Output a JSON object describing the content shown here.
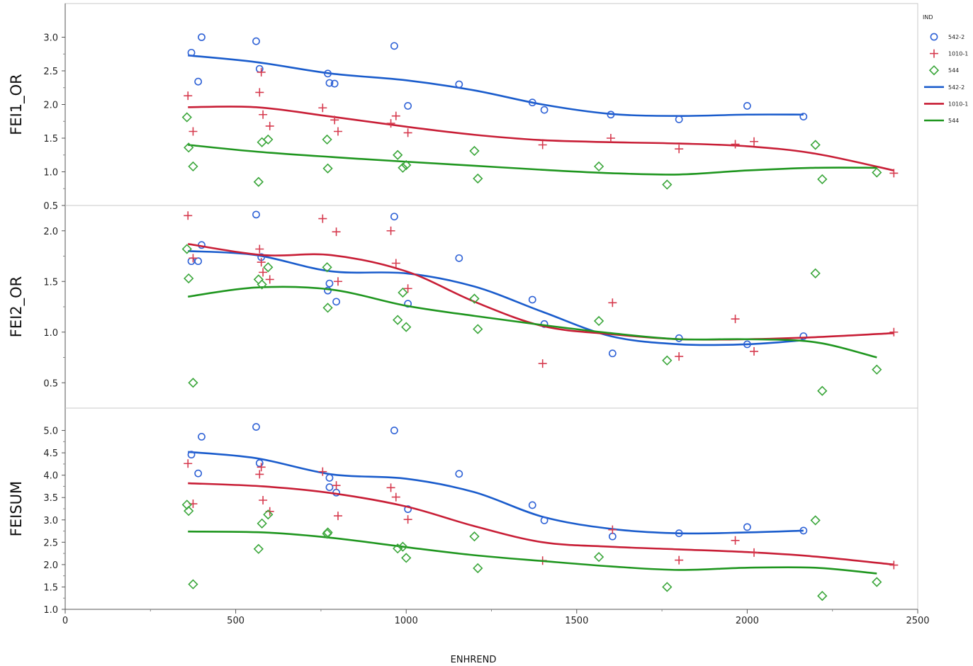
{
  "chart_data": {
    "type": "scatter",
    "x_label": "ENHREND",
    "x_ticks": [
      0,
      500,
      1000,
      1500,
      2000,
      2500
    ],
    "x_range": [
      0,
      2500
    ],
    "legend": {
      "title": "IND",
      "position": "right",
      "entries": [
        {
          "label": "542-2",
          "kind": "marker",
          "marker": "circle",
          "color": "#2f62d6"
        },
        {
          "label": "1010-1",
          "kind": "marker",
          "marker": "plus",
          "color": "#d63a4e"
        },
        {
          "label": "544",
          "kind": "marker",
          "marker": "diamond",
          "color": "#3aa63a"
        },
        {
          "label": "542-2",
          "kind": "line",
          "color": "#1a5ccc"
        },
        {
          "label": "1010-1",
          "kind": "line",
          "color": "#c81e36"
        },
        {
          "label": "544",
          "kind": "line",
          "color": "#1f961f"
        }
      ]
    },
    "panels": [
      {
        "y_label": "FEI1_OR",
        "y_range": [
          0.5,
          3.5
        ],
        "y_ticks": [
          0.5,
          1.0,
          1.5,
          2.0,
          2.5,
          3.0
        ],
        "series": [
          {
            "name": "542-2",
            "marker": "circle",
            "color": "#2f62d6",
            "x": [
              370,
              400,
              390,
              560,
              570,
              770,
              775,
              790,
              965,
              1005,
              1155,
              1370,
              1405,
              1600,
              1800,
              2000,
              2165
            ],
            "y": [
              2.77,
              3.0,
              2.34,
              2.94,
              2.53,
              2.46,
              2.32,
              2.31,
              2.87,
              1.98,
              2.3,
              2.03,
              1.92,
              1.85,
              1.78,
              1.98,
              1.82
            ],
            "fit_x": [
              360,
              560,
              780,
              1000,
              1200,
              1400,
              1600,
              1800,
              2000,
              2165
            ],
            "fit_y": [
              2.73,
              2.63,
              2.46,
              2.36,
              2.21,
              2.0,
              1.86,
              1.83,
              1.85,
              1.85
            ]
          },
          {
            "name": "1010-1",
            "marker": "plus",
            "color": "#d63a4e",
            "x": [
              360,
              375,
              570,
              575,
              580,
              600,
              755,
              790,
              800,
              955,
              970,
              1005,
              1400,
              1600,
              1800,
              1965,
              2020,
              2430
            ],
            "y": [
              2.13,
              1.6,
              2.18,
              2.48,
              1.85,
              1.68,
              1.95,
              1.77,
              1.6,
              1.72,
              1.83,
              1.58,
              1.4,
              1.5,
              1.34,
              1.41,
              1.45,
              0.98
            ],
            "fit_x": [
              360,
              560,
              780,
              1000,
              1200,
              1400,
              1600,
              1800,
              2000,
              2200,
              2430
            ],
            "fit_y": [
              1.96,
              1.96,
              1.82,
              1.67,
              1.55,
              1.47,
              1.44,
              1.42,
              1.38,
              1.27,
              1.02
            ]
          },
          {
            "name": "544",
            "marker": "diamond",
            "color": "#3aa63a",
            "x": [
              357,
              362,
              375,
              567,
              577,
              595,
              768,
              770,
              975,
              990,
              1000,
              1200,
              1210,
              1565,
              1765,
              2200,
              2220,
              2380
            ],
            "y": [
              1.81,
              1.36,
              1.08,
              0.85,
              1.44,
              1.48,
              1.48,
              1.05,
              1.25,
              1.06,
              1.1,
              1.31,
              0.9,
              1.08,
              0.81,
              1.4,
              0.89,
              0.99
            ],
            "fit_x": [
              360,
              560,
              780,
              1000,
              1200,
              1400,
              1600,
              1800,
              2000,
              2200,
              2380
            ],
            "fit_y": [
              1.4,
              1.3,
              1.22,
              1.15,
              1.09,
              1.03,
              0.98,
              0.96,
              1.02,
              1.06,
              1.06
            ]
          }
        ]
      },
      {
        "y_label": "FEI2_OR",
        "y_range": [
          0.25,
          2.25
        ],
        "y_ticks": [
          0.5,
          1.0,
          1.5,
          2.0
        ],
        "series": [
          {
            "name": "542-2",
            "marker": "circle",
            "color": "#2f62d6",
            "x": [
              560,
              965,
              400,
              370,
              390,
              575,
              775,
              770,
              795,
              1005,
              1155,
              1370,
              1405,
              1605,
              1800,
              2000,
              2165
            ],
            "y": [
              2.16,
              2.14,
              1.86,
              1.7,
              1.7,
              1.74,
              1.48,
              1.41,
              1.3,
              1.28,
              1.73,
              1.32,
              1.08,
              0.79,
              0.94,
              0.88,
              0.96
            ],
            "fit_x": [
              360,
              560,
              780,
              1000,
              1200,
              1400,
              1600,
              1800,
              2000,
              2165
            ],
            "fit_y": [
              1.8,
              1.76,
              1.6,
              1.58,
              1.45,
              1.2,
              0.96,
              0.88,
              0.88,
              0.92
            ],
            "fit_shape": "curved"
          },
          {
            "name": "1010-1",
            "marker": "plus",
            "color": "#d63a4e",
            "x": [
              360,
              375,
              570,
              575,
              580,
              600,
              755,
              795,
              800,
              955,
              970,
              1005,
              1400,
              1605,
              1800,
              1965,
              2020,
              2430
            ],
            "y": [
              2.15,
              1.73,
              1.82,
              1.69,
              1.59,
              1.52,
              2.12,
              1.99,
              1.5,
              2.0,
              1.68,
              1.43,
              0.69,
              1.29,
              0.76,
              1.13,
              0.81,
              1.0
            ],
            "fit_x": [
              360,
              580,
              780,
              1000,
              1200,
              1400,
              1600,
              1800,
              2000,
              2200,
              2430
            ],
            "fit_y": [
              1.87,
              1.76,
              1.76,
              1.6,
              1.3,
              1.06,
              0.98,
              0.93,
              0.93,
              0.95,
              0.99
            ]
          },
          {
            "name": "544",
            "marker": "diamond",
            "color": "#3aa63a",
            "x": [
              357,
              362,
              375,
              567,
              577,
              595,
              768,
              770,
              975,
              990,
              1000,
              1200,
              1210,
              1565,
              1765,
              2200,
              2220,
              2380
            ],
            "y": [
              1.82,
              1.53,
              0.5,
              1.52,
              1.47,
              1.64,
              1.64,
              1.24,
              1.12,
              1.39,
              1.05,
              1.33,
              1.03,
              1.11,
              0.72,
              1.58,
              0.42,
              0.63
            ],
            "fit_x": [
              360,
              560,
              780,
              1000,
              1200,
              1400,
              1600,
              1800,
              2000,
              2200,
              2380
            ],
            "fit_y": [
              1.35,
              1.44,
              1.42,
              1.26,
              1.16,
              1.07,
              0.99,
              0.93,
              0.93,
              0.9,
              0.75
            ]
          }
        ]
      },
      {
        "y_label": "FEISUM",
        "y_range": [
          1.0,
          5.5
        ],
        "y_ticks": [
          1.0,
          1.5,
          2.0,
          2.5,
          3.0,
          3.5,
          4.0,
          4.5,
          5.0
        ],
        "series": [
          {
            "name": "542-2",
            "marker": "circle",
            "color": "#2f62d6",
            "x": [
              560,
              965,
              400,
              370,
              390,
              570,
              775,
              775,
              795,
              1005,
              1155,
              1370,
              1405,
              1605,
              1800,
              2000,
              2165
            ],
            "y": [
              5.08,
              5.0,
              4.86,
              4.46,
              4.04,
              4.27,
              3.94,
              3.73,
              3.61,
              3.24,
              4.03,
              3.33,
              2.99,
              2.63,
              2.7,
              2.84,
              2.76
            ],
            "fit_x": [
              360,
              560,
              780,
              1000,
              1200,
              1400,
              1600,
              1800,
              2000,
              2165
            ],
            "fit_y": [
              4.52,
              4.38,
              4.02,
              3.92,
              3.62,
              3.07,
              2.8,
              2.7,
              2.72,
              2.76
            ]
          },
          {
            "name": "1010-1",
            "marker": "plus",
            "color": "#d63a4e",
            "x": [
              360,
              375,
              570,
              575,
              580,
              600,
              755,
              795,
              800,
              955,
              970,
              1005,
              1400,
              1605,
              1800,
              1965,
              2020,
              2430
            ],
            "y": [
              4.26,
              3.36,
              4.02,
              4.18,
              3.44,
              3.19,
              4.08,
              3.77,
              3.09,
              3.72,
              3.51,
              3.01,
              2.09,
              2.78,
              2.1,
              2.54,
              2.27,
              1.99
            ],
            "fit_x": [
              360,
              580,
              780,
              1000,
              1200,
              1400,
              1600,
              1800,
              2000,
              2200,
              2430
            ],
            "fit_y": [
              3.82,
              3.75,
              3.6,
              3.3,
              2.86,
              2.5,
              2.4,
              2.34,
              2.28,
              2.18,
              2.0
            ]
          },
          {
            "name": "544",
            "marker": "diamond",
            "color": "#3aa63a",
            "x": [
              357,
              362,
              375,
              567,
              577,
              595,
              768,
              770,
              975,
              990,
              1000,
              1200,
              1210,
              1565,
              1765,
              2200,
              2220,
              2380
            ],
            "y": [
              3.34,
              3.2,
              1.56,
              2.35,
              2.92,
              3.12,
              2.69,
              2.72,
              2.36,
              2.4,
              2.15,
              2.63,
              1.92,
              2.17,
              1.5,
              2.99,
              1.3,
              1.61
            ],
            "fit_x": [
              360,
              580,
              780,
              1000,
              1200,
              1400,
              1600,
              1800,
              2000,
              2200,
              2380
            ],
            "fit_y": [
              2.74,
              2.72,
              2.6,
              2.39,
              2.21,
              2.08,
              1.96,
              1.88,
              1.93,
              1.93,
              1.8
            ]
          }
        ]
      }
    ]
  }
}
